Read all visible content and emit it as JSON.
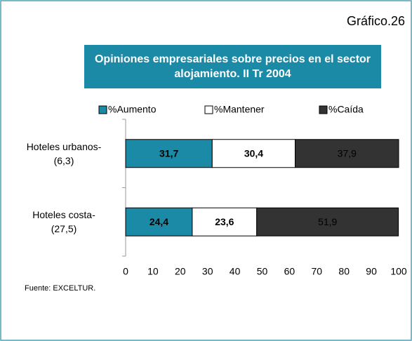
{
  "chart_data": {
    "type": "bar",
    "orientation": "horizontal",
    "stacked": true,
    "figure_label": "Gráfico.26",
    "title": "Opiniones empresariales sobre precios en el sector alojamiento. II Tr 2004",
    "categories": [
      "Hoteles urbanos-\n(6,3)",
      "Hoteles costa-\n(27,5)"
    ],
    "series": [
      {
        "name": "%Aumento",
        "color": "#1b8aa6",
        "values": [
          31.7,
          24.4
        ],
        "value_labels": [
          "31,7",
          "24,4"
        ]
      },
      {
        "name": "%Mantener",
        "color": "#ffffff",
        "values": [
          30.4,
          23.6
        ],
        "value_labels": [
          "30,4",
          "23,6"
        ]
      },
      {
        "name": "%Caída",
        "color": "#333333",
        "values": [
          37.9,
          51.9
        ],
        "value_labels": [
          "37,9",
          "51,9"
        ]
      }
    ],
    "xlim": [
      0,
      100
    ],
    "xticks": [
      0,
      10,
      20,
      30,
      40,
      50,
      60,
      70,
      80,
      90,
      100
    ],
    "source": "Fuente: EXCELTUR."
  }
}
